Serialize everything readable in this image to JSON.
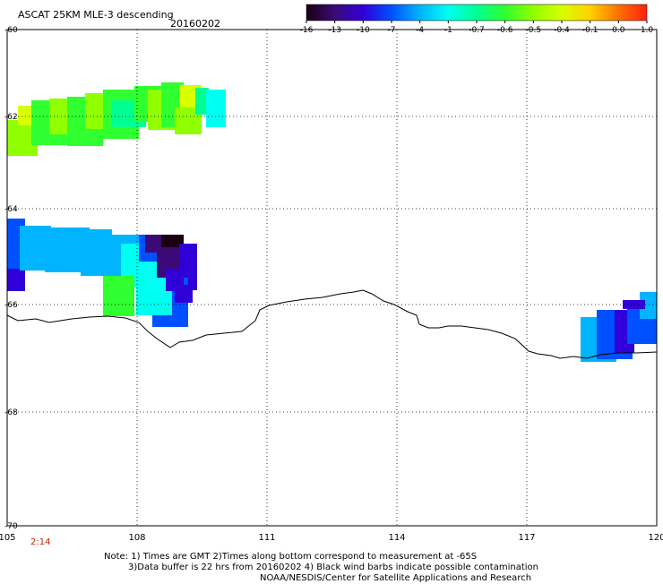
{
  "header": {
    "title": "ASCAT 25KM MLE-3 descending",
    "date": "20160202"
  },
  "colorbar": {
    "labels": [
      "-16",
      "-13",
      "-10",
      "-7",
      "-4",
      "-1",
      "-0.7",
      "-0.6",
      "-0.5",
      "-0.4",
      "-0.1",
      "0.0",
      "1.0"
    ],
    "colors": [
      "#1a0010",
      "#3c0a78",
      "#3000d8",
      "#0050ff",
      "#00b4ff",
      "#00fff0",
      "#00ff90",
      "#30ff30",
      "#90ff00",
      "#d8ff00",
      "#ffd000",
      "#ff7000",
      "#ff2010"
    ]
  },
  "map": {
    "lon_ticks": [
      "105",
      "108",
      "111",
      "114",
      "117",
      "120"
    ],
    "lat_ticks": [
      "-60",
      "-62",
      "-64",
      "-66",
      "-68",
      "-70"
    ],
    "time_labels": [
      "2:14"
    ]
  },
  "notes": {
    "line1": "Note: 1) Times are GMT 2)Times along bottom correspond to measurement at -65S",
    "line2": "3)Data buffer is 22 hrs from 20160202 4) Black wind barbs indicate possible contamination",
    "line3": "NOAA/NESDIS/Center for Satellite Applications and Research"
  }
}
